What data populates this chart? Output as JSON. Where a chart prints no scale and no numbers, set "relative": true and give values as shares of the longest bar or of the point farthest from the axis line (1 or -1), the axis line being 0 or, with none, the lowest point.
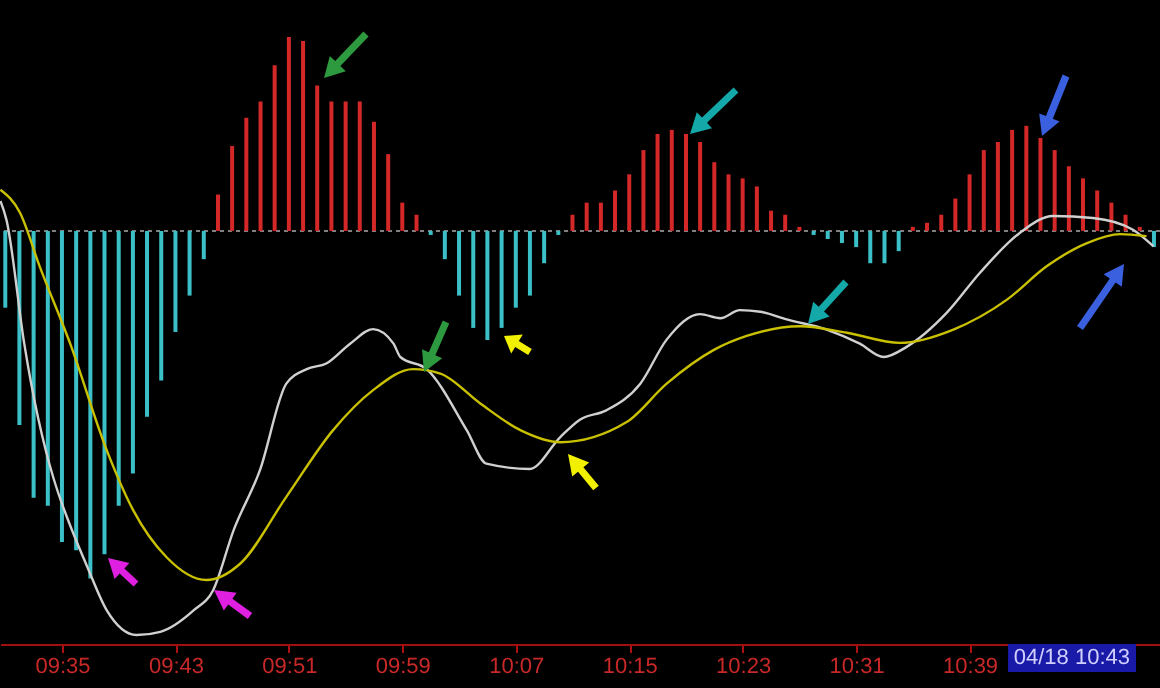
{
  "chart_data": {
    "type": "bar",
    "relative": true,
    "x": [
      9.5167,
      9.5333,
      9.55,
      9.5667,
      9.5833,
      9.6,
      9.6167,
      9.6333,
      9.65,
      9.6667,
      9.6833,
      9.7,
      9.7167,
      9.7333,
      9.75,
      9.7667,
      9.7833,
      9.8,
      9.8167,
      9.8333,
      9.85,
      9.8667,
      9.8833,
      9.9,
      9.9167,
      9.9333,
      9.95,
      9.9667,
      9.9833,
      10,
      10.0167,
      10.0333,
      10.05,
      10.0667,
      10.0833,
      10.1,
      10.1167,
      10.1333,
      10.15,
      10.1667,
      10.1833,
      10.2,
      10.2167,
      10.2333,
      10.25,
      10.2667,
      10.2833,
      10.3,
      10.3167,
      10.3333,
      10.35,
      10.3667,
      10.3833,
      10.4,
      10.4167,
      10.4333,
      10.45,
      10.4667,
      10.4833,
      10.5,
      10.5167,
      10.5333,
      10.55,
      10.5667,
      10.5833,
      10.6,
      10.6167,
      10.6333,
      10.65,
      10.6667,
      10.6833,
      10.7,
      10.7167,
      10.7333,
      10.75,
      10.7667,
      10.7833,
      10.8,
      10.8167,
      10.8333,
      10.85,
      10.8667
    ],
    "xlim": [
      9.5105,
      10.8738
    ],
    "xticks": [
      {
        "value": 9.5833,
        "label": "09:35"
      },
      {
        "value": 9.7167,
        "label": "09:43"
      },
      {
        "value": 9.85,
        "label": "09:51"
      },
      {
        "value": 9.9833,
        "label": "09:59"
      },
      {
        "value": 10.1167,
        "label": "10:07"
      },
      {
        "value": 10.25,
        "label": "10:15"
      },
      {
        "value": 10.3833,
        "label": "10:23"
      },
      {
        "value": 10.5167,
        "label": "10:31"
      },
      {
        "value": 10.65,
        "label": "10:39"
      }
    ],
    "annotations": [
      "04/18 10:43"
    ],
    "ref_lines": [
      {
        "axis": "y",
        "value": 0,
        "color": "#808080",
        "line_style": "dotted"
      }
    ],
    "series": [
      {
        "color": "#d42828",
        "values": [
          null,
          null,
          null,
          null,
          null,
          null,
          null,
          null,
          null,
          null,
          null,
          null,
          null,
          null,
          null,
          0.09,
          0.21,
          0.28,
          0.32,
          0.41,
          0.48,
          0.47,
          0.36,
          0.32,
          0.32,
          0.32,
          0.27,
          0.19,
          0.07,
          0.04,
          null,
          null,
          null,
          null,
          null,
          null,
          null,
          null,
          null,
          null,
          0.04,
          0.07,
          0.07,
          0.1,
          0.14,
          0.2,
          0.24,
          0.25,
          0.24,
          0.22,
          0.17,
          0.14,
          0.13,
          0.11,
          0.05,
          0.04,
          0.01,
          null,
          null,
          null,
          null,
          null,
          null,
          null,
          0.01,
          0.02,
          0.04,
          0.08,
          0.14,
          0.2,
          0.22,
          0.25,
          0.26,
          0.23,
          0.2,
          0.16,
          0.13,
          0.1,
          0.07,
          0.04,
          0.01,
          null
        ]
      },
      {
        "color": "#3cc0c8",
        "values": [
          -0.19,
          -0.48,
          -0.66,
          -0.68,
          -0.77,
          -0.79,
          -0.86,
          -0.8,
          -0.68,
          -0.6,
          -0.46,
          -0.37,
          -0.25,
          -0.16,
          -0.07,
          null,
          null,
          null,
          null,
          null,
          null,
          null,
          null,
          null,
          null,
          null,
          null,
          null,
          null,
          null,
          -0.01,
          -0.07,
          -0.16,
          -0.24,
          -0.27,
          -0.24,
          -0.19,
          -0.16,
          -0.08,
          -0.01,
          null,
          null,
          null,
          null,
          null,
          null,
          null,
          null,
          null,
          null,
          null,
          null,
          null,
          null,
          null,
          null,
          null,
          -0.01,
          -0.02,
          -0.03,
          -0.04,
          -0.08,
          -0.08,
          -0.05,
          null,
          null,
          null,
          null,
          null,
          null,
          null,
          null,
          null,
          null,
          null,
          null,
          null,
          null,
          null,
          null,
          null,
          -0.04
        ]
      },
      {
        "type": "line",
        "color": "#d0d0d0",
        "x": [
          9.511,
          9.518,
          9.539,
          9.618,
          9.636,
          9.671,
          9.699,
          9.738,
          9.761,
          9.785,
          9.816,
          9.847,
          9.871,
          9.894,
          9.922,
          9.949,
          9.973,
          9.981,
          10.012,
          10.059,
          10.082,
          10.133,
          10.169,
          10.192,
          10.223,
          10.263,
          10.294,
          10.333,
          10.357,
          10.38,
          10.404,
          10.435,
          10.482,
          10.521,
          10.549,
          10.576,
          10.623,
          10.662,
          10.709,
          10.748,
          10.795,
          10.842,
          10.866
        ],
        "values": [
          0.074,
          0.028,
          -0.279,
          -0.856,
          -0.939,
          -1,
          -0.992,
          -0.939,
          -0.889,
          -0.741,
          -0.592,
          -0.378,
          -0.342,
          -0.328,
          -0.279,
          -0.243,
          -0.279,
          -0.312,
          -0.342,
          -0.493,
          -0.576,
          -0.589,
          -0.51,
          -0.467,
          -0.444,
          -0.378,
          -0.269,
          -0.206,
          -0.216,
          -0.196,
          -0.2,
          -0.219,
          -0.244,
          -0.279,
          -0.312,
          -0.287,
          -0.203,
          -0.104,
          -0.005,
          0.037,
          0.032,
          0.003,
          -0.038
        ]
      },
      {
        "type": "line",
        "color": "#c8c000",
        "x": [
          9.511,
          9.534,
          9.557,
          9.593,
          9.636,
          9.667,
          9.706,
          9.753,
          9.793,
          9.847,
          9.902,
          9.949,
          9.996,
          10.028,
          10.075,
          10.122,
          10.169,
          10.247,
          10.294,
          10.349,
          10.388,
          10.451,
          10.506,
          10.568,
          10.631,
          10.694,
          10.741,
          10.788,
          10.827,
          10.858
        ],
        "values": [
          0.102,
          0.045,
          -0.087,
          -0.279,
          -0.543,
          -0.691,
          -0.807,
          -0.864,
          -0.823,
          -0.658,
          -0.493,
          -0.394,
          -0.342,
          -0.353,
          -0.427,
          -0.493,
          -0.523,
          -0.473,
          -0.378,
          -0.295,
          -0.26,
          -0.236,
          -0.252,
          -0.277,
          -0.244,
          -0.17,
          -0.087,
          -0.03,
          -0.008,
          -0.013
        ]
      }
    ]
  }
}
